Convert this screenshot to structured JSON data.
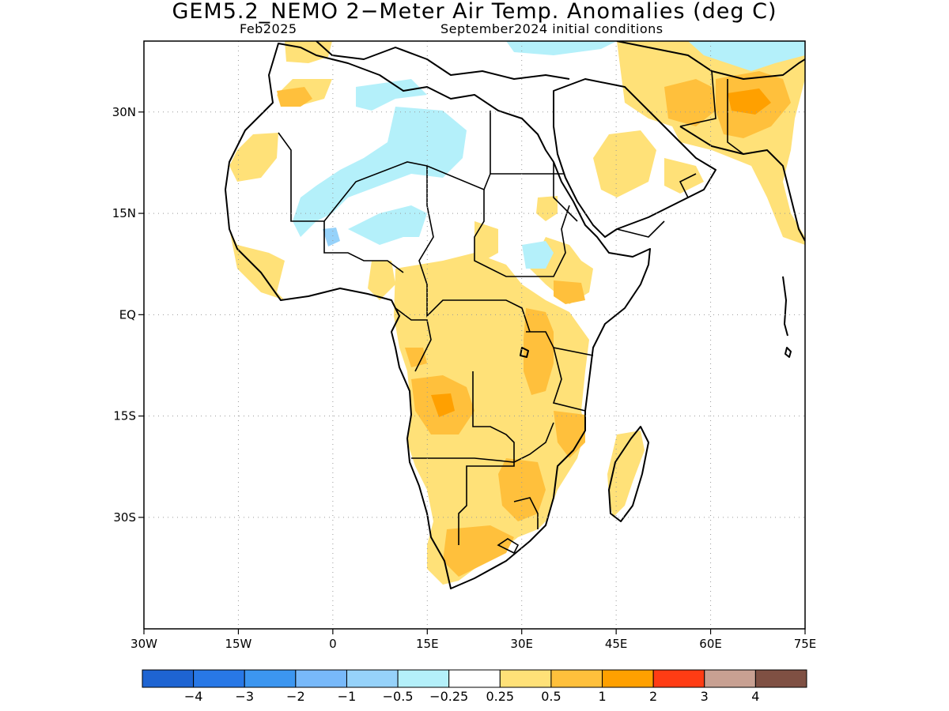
{
  "title": "GEM5.2_NEMO 2−Meter Air Temp. Anomalies (deg C)",
  "valid_month": "Feb2025",
  "init_conditions": "September2024 initial conditions",
  "map": {
    "lon_range": [
      -30,
      75
    ],
    "lat_range": [
      -46.5,
      40.5
    ],
    "lon_ticks": [
      "30W",
      "15W",
      "0",
      "15E",
      "30E",
      "45E",
      "60E",
      "75E"
    ],
    "lat_ticks": [
      "30N",
      "15N",
      "EQ",
      "15S",
      "30S"
    ],
    "grid": "dotted",
    "land_outline_color": "#000000"
  },
  "colorbar": {
    "colors": [
      "#1e64d2",
      "#2878e6",
      "#3c96f0",
      "#78b9fa",
      "#96d2fa",
      "#b4f0fa",
      "#ffffff",
      "#ffe178",
      "#ffc03c",
      "#ffa000",
      "#ff3c14",
      "#c8a092",
      "#7f5043"
    ],
    "labels": [
      "−4",
      "−3",
      "−2",
      "−1",
      "−0.5",
      "−0.25",
      "0.25",
      "0.5",
      "1",
      "2",
      "3",
      "4"
    ]
  },
  "anomaly_colors": {
    "weak_warm": "#ffe178",
    "warm": "#ffc03c",
    "strong_warm": "#ffa000",
    "weak_cool": "#b4f0fa",
    "cool": "#96d2fa"
  }
}
